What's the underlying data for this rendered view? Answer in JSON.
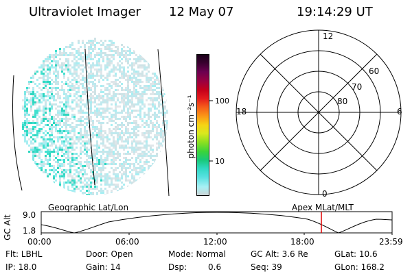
{
  "header": {
    "instrument": "Ultraviolet Imager",
    "date": "12 May 07",
    "time": "19:14:29 UT"
  },
  "imager": {
    "dot_colors": [
      "#dfe6e9",
      "#cfe3e6",
      "#bfe9ee",
      "#a8eef2",
      "#7fe8e6",
      "#41e0cf",
      "#2fd6bf"
    ]
  },
  "colorbar": {
    "unit_label": "photon cm⁻²s⁻¹",
    "ticks": [
      "100",
      "10"
    ],
    "colors": [
      "#cdd5d7",
      "#a7f0f4",
      "#57e0e0",
      "#31d9c3",
      "#19c97a",
      "#3ad43a",
      "#8fe020",
      "#d9e81e",
      "#f6d414",
      "#fb9a16",
      "#f45a1a",
      "#e31a1c",
      "#c5001a",
      "#9b0040",
      "#6b0050",
      "#3a0030",
      "#1a0018"
    ]
  },
  "polar": {
    "mlt_labels": {
      "top": "12",
      "left": "18",
      "right": "6",
      "bottom": "0"
    },
    "lat_labels": [
      "60",
      "70",
      "80"
    ]
  },
  "altitude_plot": {
    "title_left": "Geographic Lat/Lon",
    "title_right": "Apex MLat/MLT",
    "ylabel": "GC Alt",
    "yticks": [
      "9.0",
      "1.8"
    ],
    "xticks": [
      "00:00",
      "06:00",
      "12:00",
      "18:00",
      "23:59"
    ],
    "marker_color": "#e00000"
  },
  "info": {
    "flt": "Flt: LBHL",
    "ip": "IP: 18.0",
    "door": "Door: Open",
    "gain": "Gain: 14",
    "mode": "Mode: Normal",
    "dsp_label": "Dsp:",
    "dsp_value": "0.6",
    "gc_alt": "GC Alt: 3.6 Re",
    "seq": "Seq: 39",
    "glat": "GLat: 10.6",
    "glon": "GLon: 168.2"
  }
}
